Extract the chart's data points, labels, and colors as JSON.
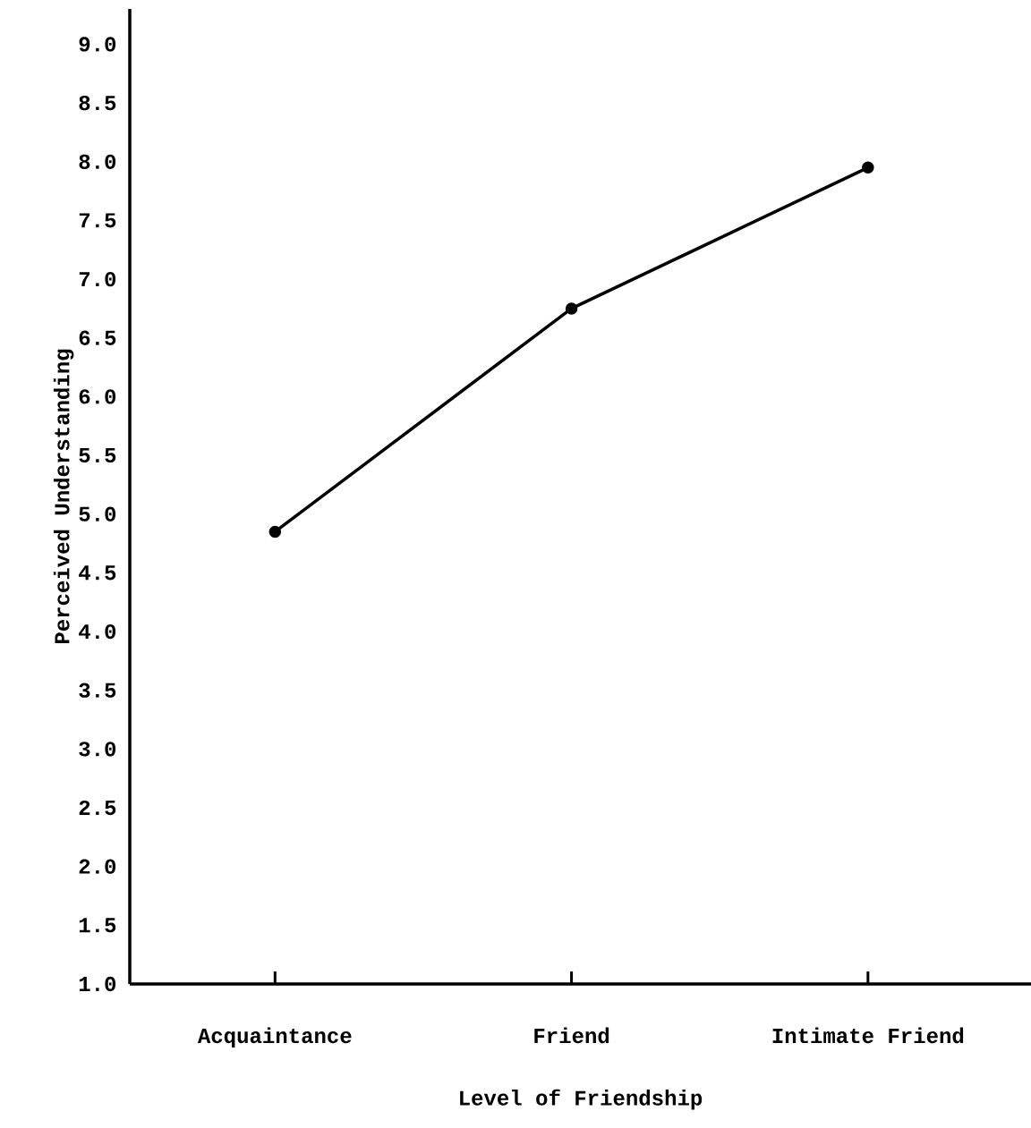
{
  "chart_data": {
    "type": "line",
    "xlabel": "Level of Friendship",
    "ylabel": "Perceived Understanding",
    "categories": [
      "Acquaintance",
      "Friend",
      "Intimate Friend"
    ],
    "values": [
      4.85,
      6.75,
      7.95
    ],
    "color": "#000000",
    "marker": "circle",
    "line_style": "solid",
    "ylim": [
      1.0,
      9.3
    ],
    "yticks": [
      {
        "value": 1.0,
        "label": "1.0"
      },
      {
        "value": 1.5,
        "label": "1.5"
      },
      {
        "value": 2.0,
        "label": "2.0"
      },
      {
        "value": 2.5,
        "label": "2.5"
      },
      {
        "value": 3.0,
        "label": "3.0"
      },
      {
        "value": 3.5,
        "label": "3.5"
      },
      {
        "value": 4.0,
        "label": "4.0"
      },
      {
        "value": 4.5,
        "label": "4.5"
      },
      {
        "value": 5.0,
        "label": "5.0"
      },
      {
        "value": 5.5,
        "label": "5.5"
      },
      {
        "value": 6.0,
        "label": "6.0"
      },
      {
        "value": 6.5,
        "label": "6.5"
      },
      {
        "value": 7.0,
        "label": "7.0"
      },
      {
        "value": 7.5,
        "label": "7.5"
      },
      {
        "value": 8.0,
        "label": "8.0"
      },
      {
        "value": 8.5,
        "label": "8.5"
      },
      {
        "value": 9.0,
        "label": "9.0"
      }
    ]
  }
}
